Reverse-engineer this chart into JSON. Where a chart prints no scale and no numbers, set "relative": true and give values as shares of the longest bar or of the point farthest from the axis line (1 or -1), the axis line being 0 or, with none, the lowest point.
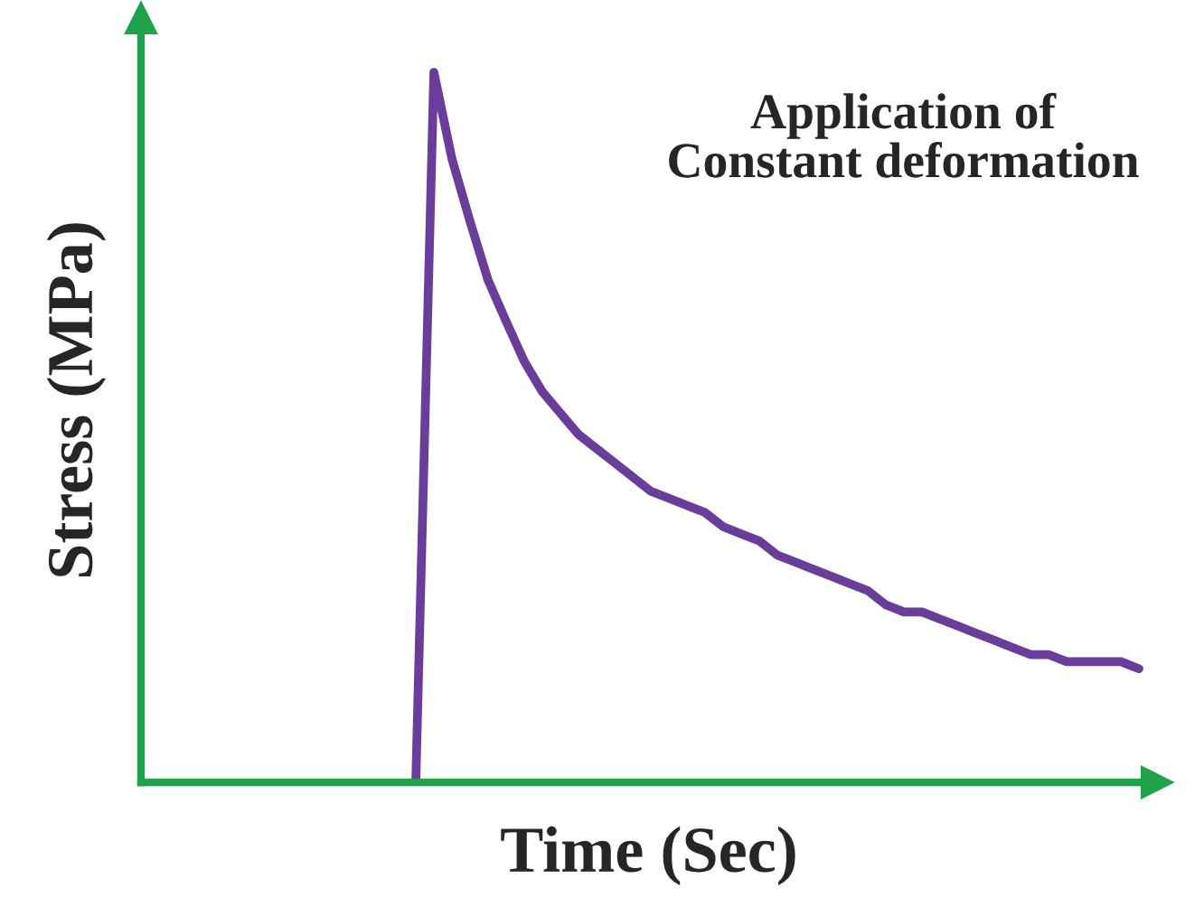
{
  "chart_data": {
    "type": "line",
    "relative": true,
    "xlabel": "Time (Sec)",
    "ylabel": "Stress (MPa)",
    "annotations": [
      "Application of\nConstant deformation"
    ],
    "categories": [
      null,
      null,
      null,
      null,
      null,
      null,
      null,
      null,
      null,
      null,
      null,
      null,
      null,
      null,
      null,
      null,
      null,
      null,
      null,
      null,
      null,
      null,
      null,
      null,
      null,
      null,
      null,
      null,
      null,
      null,
      null,
      null,
      null,
      null,
      null,
      null,
      null,
      null,
      null,
      null,
      null,
      null,
      null,
      null,
      null,
      null,
      null,
      null,
      null,
      null,
      null,
      null,
      null,
      null,
      null,
      null,
      null
    ],
    "series": [
      {
        "color": "#6a3d9a",
        "values": [
          null,
          null,
          null,
          null,
          null,
          null,
          null,
          null,
          null,
          null,
          null,
          null,
          null,
          null,
          null,
          0,
          1,
          0.878,
          0.79,
          0.707,
          0.649,
          0.593,
          0.55,
          0.52,
          0.49,
          0.47,
          0.45,
          0.43,
          0.41,
          0.4,
          0.39,
          0.38,
          0.36,
          0.35,
          0.34,
          0.32,
          0.31,
          0.3,
          0.29,
          0.28,
          0.27,
          0.25,
          0.24,
          0.24,
          0.23,
          0.22,
          0.21,
          0.2,
          0.19,
          0.18,
          0.18,
          0.17,
          0.17,
          0.17,
          0.17,
          0.16,
          null
        ]
      }
    ],
    "grid": false,
    "legend": false
  }
}
